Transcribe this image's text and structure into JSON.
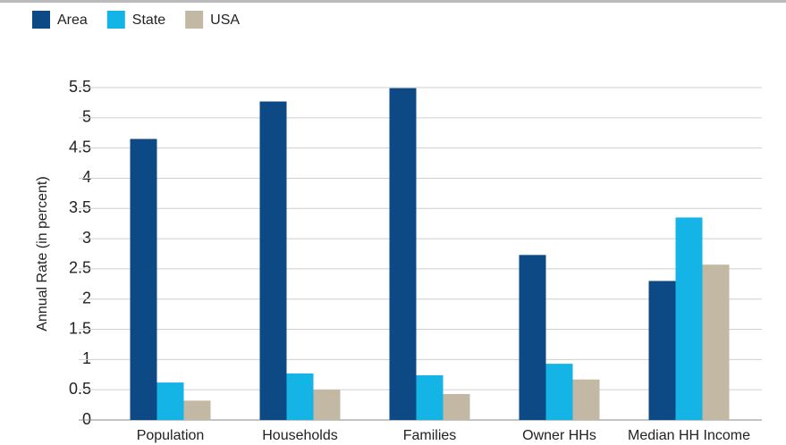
{
  "chart_data": {
    "type": "bar",
    "y_label": "Annual Rate (in percent)",
    "categories": [
      "Population",
      "Households",
      "Families",
      "Owner HHs",
      "Median HH Income"
    ],
    "series": [
      {
        "name": "Area",
        "color": "#0d4a85",
        "values": [
          4.65,
          5.27,
          5.49,
          2.73,
          2.3
        ]
      },
      {
        "name": "State",
        "color": "#14b4e6",
        "values": [
          0.62,
          0.77,
          0.74,
          0.93,
          3.35
        ]
      },
      {
        "name": "USA",
        "color": "#c2b8a3",
        "values": [
          0.32,
          0.5,
          0.43,
          0.67,
          2.57
        ]
      }
    ],
    "ylim": [
      0,
      5.5
    ],
    "yticks": [
      0,
      0.5,
      1,
      1.5,
      2,
      2.5,
      3,
      3.5,
      4,
      4.5,
      5,
      5.5
    ],
    "grid": true,
    "legend": "top-left"
  }
}
